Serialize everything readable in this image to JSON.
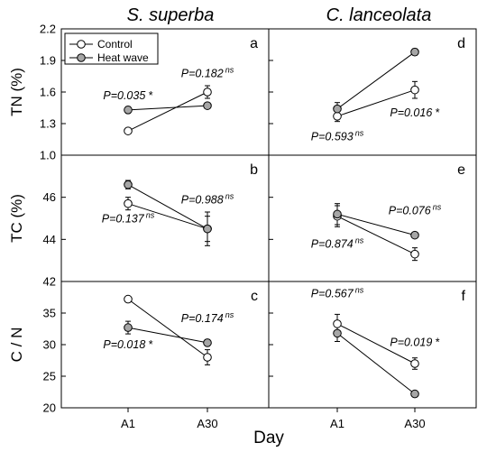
{
  "figure": {
    "columns": [
      "S. superba",
      "C. lanceolata"
    ],
    "x_label": "Day",
    "legend": [
      "Control",
      "Heat wave"
    ],
    "legend_placement": "top-left of panel a"
  },
  "colors": {
    "control": "#ffffff",
    "heat_wave": "#a6a6a6",
    "line": "#000000"
  },
  "chart_data": [
    {
      "type": "line",
      "panel": "a",
      "column": "S. superba",
      "ylabel": "TN (%)",
      "ylim": [
        1.0,
        2.2
      ],
      "yticks": [
        1.0,
        1.3,
        1.6,
        1.9,
        2.2
      ],
      "categories": [
        "A1",
        "A30"
      ],
      "series": [
        {
          "name": "Control",
          "values": [
            1.23,
            1.6
          ],
          "errors": [
            0.01,
            0.06
          ]
        },
        {
          "name": "Heat wave",
          "values": [
            1.43,
            1.47
          ],
          "errors": [
            0.03,
            0.02
          ]
        }
      ],
      "annotations": [
        {
          "main": "P=0.035",
          "sup": "",
          "mark": " *",
          "category": "A1",
          "y": 1.53
        },
        {
          "main": "P=0.182",
          "sup": "ns",
          "mark": "",
          "category": "A30",
          "y": 1.74
        }
      ]
    },
    {
      "type": "line",
      "panel": "b",
      "column": "S. superba",
      "ylabel": "TC (%)",
      "ylim": [
        42,
        48
      ],
      "yticks": [
        42,
        44,
        46
      ],
      "categories": [
        "A1",
        "A30"
      ],
      "series": [
        {
          "name": "Control",
          "values": [
            45.7,
            44.5
          ],
          "errors": [
            0.3,
            0.8
          ]
        },
        {
          "name": "Heat wave",
          "values": [
            46.6,
            44.5
          ],
          "errors": [
            0.2,
            0.6
          ]
        }
      ],
      "annotations": [
        {
          "main": "P=0.137",
          "sup": "ns",
          "mark": "",
          "category": "A1",
          "y": 44.8
        },
        {
          "main": "P=0.988",
          "sup": "ns",
          "mark": "",
          "category": "A30",
          "y": 45.7
        }
      ]
    },
    {
      "type": "line",
      "panel": "c",
      "column": "S. superba",
      "ylabel": "C / N",
      "ylim": [
        20,
        40
      ],
      "yticks": [
        20,
        25,
        30,
        35
      ],
      "categories": [
        "A1",
        "A30"
      ],
      "series": [
        {
          "name": "Control",
          "values": [
            37.2,
            28.0
          ],
          "errors": [
            0.3,
            1.2
          ]
        },
        {
          "name": "Heat wave",
          "values": [
            32.7,
            30.3
          ],
          "errors": [
            1.0,
            0.5
          ]
        }
      ],
      "annotations": [
        {
          "main": "P=0.018",
          "sup": "",
          "mark": " *",
          "category": "A1",
          "y": 29.4
        },
        {
          "main": "P=0.174",
          "sup": "ns",
          "mark": "",
          "category": "A30",
          "y": 33.6
        }
      ]
    },
    {
      "type": "line",
      "panel": "d",
      "column": "C. lanceolata",
      "ylabel": "",
      "ylim": [
        1.0,
        2.2
      ],
      "yticks": [
        1.0,
        1.3,
        1.6,
        1.9,
        2.2
      ],
      "categories": [
        "A1",
        "A30"
      ],
      "series": [
        {
          "name": "Control",
          "values": [
            1.37,
            1.62
          ],
          "errors": [
            0.05,
            0.08
          ]
        },
        {
          "name": "Heat wave",
          "values": [
            1.44,
            1.98
          ],
          "errors": [
            0.06,
            0.03
          ]
        }
      ],
      "annotations": [
        {
          "main": "P=0.593",
          "sup": "ns",
          "mark": "",
          "category": "A1",
          "y": 1.14
        },
        {
          "main": "P=0.016",
          "sup": "",
          "mark": " *",
          "category": "A30",
          "y": 1.37
        }
      ]
    },
    {
      "type": "line",
      "panel": "e",
      "column": "C. lanceolata",
      "ylabel": "",
      "ylim": [
        42,
        48
      ],
      "yticks": [
        42,
        44,
        46
      ],
      "categories": [
        "A1",
        "A30"
      ],
      "series": [
        {
          "name": "Control",
          "values": [
            45.1,
            43.3
          ],
          "errors": [
            0.5,
            0.3
          ]
        },
        {
          "name": "Heat wave",
          "values": [
            45.2,
            44.2
          ],
          "errors": [
            0.5,
            0.1
          ]
        }
      ],
      "annotations": [
        {
          "main": "P=0.874",
          "sup": "ns",
          "mark": "",
          "category": "A1",
          "y": 43.6
        },
        {
          "main": "P=0.076",
          "sup": "ns",
          "mark": "",
          "category": "A30",
          "y": 45.2
        }
      ]
    },
    {
      "type": "line",
      "panel": "f",
      "column": "C. lanceolata",
      "ylabel": "",
      "ylim": [
        20,
        40
      ],
      "yticks": [
        20,
        25,
        30,
        35
      ],
      "categories": [
        "A1",
        "A30"
      ],
      "series": [
        {
          "name": "Control",
          "values": [
            33.3,
            27.0
          ],
          "errors": [
            1.5,
            0.9
          ]
        },
        {
          "name": "Heat wave",
          "values": [
            31.8,
            22.2
          ],
          "errors": [
            1.3,
            0.2
          ]
        }
      ],
      "annotations": [
        {
          "main": "P=0.567",
          "sup": "ns",
          "mark": "",
          "category": "A1",
          "y": 37.5
        },
        {
          "main": "P=0.019",
          "sup": "",
          "mark": " *",
          "category": "A30",
          "y": 29.8
        }
      ]
    }
  ]
}
